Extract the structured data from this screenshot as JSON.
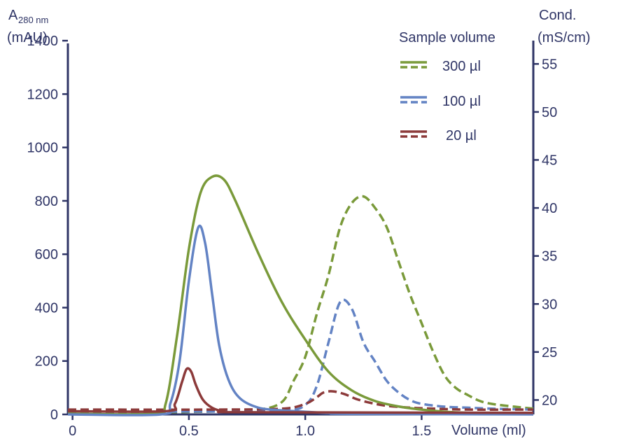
{
  "chart_data": {
    "type": "line",
    "left_axis_label_line1": "A",
    "left_axis_label_sub": "280 nm",
    "left_axis_label_line2": "(mAU)",
    "right_axis_label_line1": "Cond.",
    "right_axis_label_line2": "(mS/cm)",
    "xlabel": "Volume (ml)",
    "legend_title": "Sample volume",
    "xlim": [
      -0.02,
      1.98
    ],
    "ylim_left": [
      0,
      1500
    ],
    "ylim_right": [
      18.5,
      60.2
    ],
    "x_ticks": [
      0,
      0.5,
      1.0,
      1.5
    ],
    "x_tick_labels": [
      "0",
      "0.5",
      "1.0",
      "1.5"
    ],
    "y_left_ticks": [
      0,
      200,
      400,
      600,
      800,
      1000,
      1200,
      1400
    ],
    "y_left_tick_labels": [
      "0",
      "200",
      "400",
      "600",
      "800",
      "1000",
      "1200",
      "1400"
    ],
    "y_right_ticks": [
      20,
      25,
      30,
      35,
      40,
      45,
      50,
      55
    ],
    "y_right_tick_labels": [
      "20",
      "25",
      "30",
      "35",
      "40",
      "45",
      "50",
      "55"
    ],
    "series": [
      {
        "name": "300 µl",
        "color": "#7a9a3a",
        "axis": "left",
        "dash": false,
        "x": [
          -0.02,
          0.35,
          0.4,
          0.45,
          0.5,
          0.55,
          0.6,
          0.65,
          0.7,
          0.8,
          0.9,
          1.0,
          1.1,
          1.2,
          1.3,
          1.4,
          1.5,
          1.6,
          1.7,
          1.8,
          1.98
        ],
        "y": [
          3,
          3,
          40,
          300,
          620,
          830,
          890,
          880,
          800,
          600,
          420,
          280,
          160,
          90,
          50,
          30,
          18,
          10,
          6,
          4,
          3
        ]
      },
      {
        "name": "300 µl",
        "color": "#7a9a3a",
        "axis": "right",
        "dash": true,
        "x": [
          -0.02,
          0.3,
          0.6,
          0.8,
          0.9,
          0.95,
          1.0,
          1.05,
          1.1,
          1.15,
          1.2,
          1.25,
          1.3,
          1.35,
          1.4,
          1.45,
          1.5,
          1.55,
          1.6,
          1.65,
          1.7,
          1.75,
          1.8,
          1.9,
          1.98
        ],
        "y": [
          18.7,
          18.7,
          18.8,
          19.0,
          19.8,
          22.0,
          24.5,
          29.0,
          33.0,
          38.0,
          40.5,
          41.2,
          40.0,
          38.0,
          34.5,
          31.0,
          28.0,
          25.0,
          22.5,
          21.2,
          20.5,
          19.9,
          19.6,
          19.3,
          19.1
        ]
      },
      {
        "name": "100 µl",
        "color": "#6383c4",
        "axis": "left",
        "dash": false,
        "x": [
          -0.02,
          0.38,
          0.42,
          0.46,
          0.5,
          0.54,
          0.57,
          0.6,
          0.63,
          0.67,
          0.72,
          0.8,
          0.9,
          1.0,
          1.1,
          1.2,
          1.98
        ],
        "y": [
          0,
          0,
          40,
          200,
          500,
          700,
          640,
          450,
          260,
          130,
          60,
          25,
          15,
          10,
          5,
          2,
          0
        ]
      },
      {
        "name": "100 µl",
        "color": "#6383c4",
        "axis": "right",
        "dash": true,
        "x": [
          -0.02,
          0.5,
          0.9,
          1.0,
          1.05,
          1.1,
          1.15,
          1.2,
          1.25,
          1.3,
          1.35,
          1.4,
          1.45,
          1.5,
          1.6,
          1.7,
          1.8,
          1.98
        ],
        "y": [
          18.8,
          18.8,
          18.9,
          19.5,
          21.5,
          26.0,
          30.2,
          29.5,
          26.0,
          24.0,
          22.0,
          20.8,
          20.0,
          19.6,
          19.3,
          19.2,
          19.1,
          19.0
        ]
      },
      {
        "name": "20 µl",
        "color": "#8c3a3a",
        "axis": "left",
        "dash": false,
        "x": [
          -0.02,
          0.4,
          0.44,
          0.47,
          0.49,
          0.51,
          0.53,
          0.56,
          0.6,
          0.65,
          0.75,
          1.98
        ],
        "y": [
          12,
          12,
          40,
          120,
          170,
          160,
          110,
          55,
          25,
          12,
          8,
          6
        ]
      },
      {
        "name": "20 µl",
        "color": "#8c3a3a",
        "axis": "right",
        "dash": true,
        "x": [
          -0.02,
          0.6,
          0.9,
          1.0,
          1.05,
          1.08,
          1.12,
          1.17,
          1.22,
          1.28,
          1.35,
          1.45,
          1.55,
          1.7,
          1.98
        ],
        "y": [
          19.0,
          19.0,
          19.1,
          19.6,
          20.3,
          20.8,
          20.9,
          20.6,
          20.1,
          19.7,
          19.4,
          19.2,
          19.1,
          19.0,
          19.0
        ]
      }
    ],
    "legend": [
      {
        "label": "300 µl",
        "color": "#7a9a3a"
      },
      {
        "label": "100 µl",
        "color": "#6383c4"
      },
      {
        "label": "20 µl",
        "color": "#8c3a3a"
      }
    ]
  }
}
